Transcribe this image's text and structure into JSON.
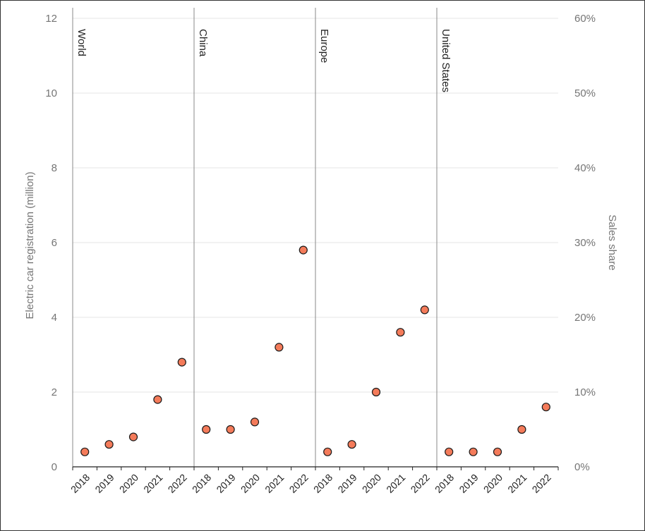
{
  "chart_data": {
    "type": "scatter",
    "ylabel": "Electric car registration (million)",
    "y2label": "Sales share",
    "ylim": [
      0,
      12
    ],
    "y2lim": [
      0,
      60
    ],
    "yticks": [
      "0",
      "2",
      "4",
      "6",
      "8",
      "10",
      "12"
    ],
    "y2ticks": [
      "0%",
      "10%",
      "20%",
      "30%",
      "40%",
      "50%",
      "60%"
    ],
    "grid": true,
    "marker_color": "#f47b5a",
    "marker_edge": "#1a1a1a",
    "x_categories": [
      "2018",
      "2019",
      "2020",
      "2021",
      "2022"
    ],
    "panels": [
      {
        "name": "World",
        "values": [
          0.4,
          0.6,
          0.8,
          1.8,
          2.8
        ]
      },
      {
        "name": "China",
        "values": [
          1.0,
          1.0,
          1.2,
          3.2,
          5.8
        ]
      },
      {
        "name": "Europe",
        "values": [
          0.4,
          0.6,
          2.0,
          3.6,
          4.2
        ]
      },
      {
        "name": "United States",
        "values": [
          0.4,
          0.4,
          0.4,
          1.0,
          1.6
        ]
      }
    ]
  }
}
